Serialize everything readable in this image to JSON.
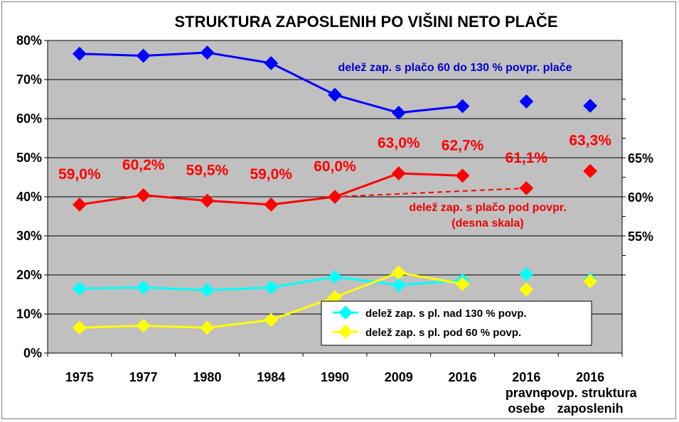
{
  "chart_data": {
    "type": "line",
    "title": "STRUKTURA ZAPOSLENIH PO VIŠINI NETO PLAČE",
    "categories": [
      {
        "lines": [
          "1975"
        ]
      },
      {
        "lines": [
          "1977"
        ]
      },
      {
        "lines": [
          "1980"
        ]
      },
      {
        "lines": [
          "1984"
        ]
      },
      {
        "lines": [
          "1990"
        ]
      },
      {
        "lines": [
          "2009"
        ]
      },
      {
        "lines": [
          "2016"
        ]
      },
      {
        "lines": [
          "2016",
          "pravne",
          "osebe"
        ]
      },
      {
        "lines": [
          "2016",
          "povp. struktura",
          "zaposlenih"
        ]
      }
    ],
    "left_axis": {
      "ticks": [
        "0%",
        "10%",
        "20%",
        "30%",
        "40%",
        "50%",
        "60%",
        "70%",
        "80%"
      ],
      "min": 0,
      "max": 80
    },
    "right_axis": {
      "ticks": [
        "55%",
        "60%",
        "65%"
      ]
    },
    "grid": true,
    "plot_background": "#c0c0c0",
    "series": [
      {
        "name": "delež zap. s plačo 60 do 130 % povpr. plače",
        "axis": "left",
        "color": "#0000ff",
        "connected": [
          76.6,
          76.1,
          76.9,
          74.2,
          66.1,
          61.5,
          63.2
        ],
        "separate": [
          [
            7,
            64.4
          ],
          [
            8,
            63.3
          ]
        ]
      },
      {
        "name": "delež zap. s plačo pod povpr. (desna skala)",
        "axis": "right",
        "color": "#ff0000",
        "connected": [
          59.0,
          60.2,
          59.5,
          59.0,
          60.0,
          63.0,
          62.7
        ],
        "separate": [
          [
            7,
            61.1
          ],
          [
            8,
            63.3
          ]
        ],
        "data_labels": [
          "59,0%",
          "60,2%",
          "59,5%",
          "59,0%",
          "60,0%",
          "63,0%",
          "62,7%",
          "61,1%",
          "63,3%"
        ]
      },
      {
        "name": "delež zap. s pl. nad 130 % povp.",
        "axis": "left",
        "color": "#00ffff",
        "connected": [
          16.5,
          16.8,
          16.1,
          16.8,
          19.5,
          17.4,
          18.6
        ],
        "separate": [
          [
            7,
            20.2
          ],
          [
            8,
            18.8
          ]
        ]
      },
      {
        "name": "delež zap. s pl. pod 60 % povp.",
        "axis": "left",
        "color": "#ffff00",
        "connected": [
          6.5,
          7.0,
          6.5,
          8.5,
          14.3,
          20.6,
          17.7
        ],
        "separate": [
          [
            7,
            16.3
          ],
          [
            8,
            18.4
          ]
        ]
      }
    ],
    "annotations": {
      "blue": "delež zap. s plačo 60 do 130 % povpr. plače",
      "red": [
        "delež zap. s plačo pod povpr.",
        "(desna skala)"
      ]
    },
    "legend": {
      "placement": "bottom-right inside plot",
      "entries": [
        "delež zap. s pl. nad 130 % povp.",
        "delež zap. s pl. pod 60 % povp."
      ]
    }
  }
}
